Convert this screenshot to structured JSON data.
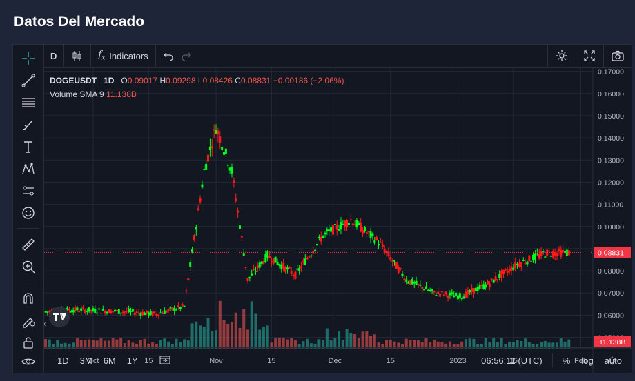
{
  "page": {
    "title": "Datos Del Mercado"
  },
  "toolbar": {
    "interval": "D",
    "indicators_label": "Indicators"
  },
  "legend": {
    "symbol": "DOGEUSDT",
    "interval": "1D",
    "open_label": "O",
    "open": "0.09017",
    "high_label": "H",
    "high": "0.09298",
    "low_label": "L",
    "low": "0.08426",
    "close_label": "C",
    "close": "0.08831",
    "change": "−0.00186 (−2.06%)",
    "volume_label": "Volume SMA 9",
    "volume_value": "11.138B"
  },
  "colors": {
    "up": "#00ff1a",
    "down": "#ff1a1a",
    "volume_up": "#26a69a",
    "volume_down": "#ef5350",
    "last_price": "#f23645"
  },
  "bottom": {
    "ranges": [
      "1D",
      "3M",
      "6M",
      "1Y"
    ],
    "time": "06:56:11 (UTC)",
    "percent": "%",
    "log": "log",
    "auto": "auto"
  },
  "chart_data": {
    "type": "candlestick",
    "symbol": "DOGEUSDT",
    "price_axis": {
      "ticks": [
        "0.17000",
        "0.16000",
        "0.15000",
        "0.14000",
        "0.13000",
        "0.12000",
        "0.11000",
        "0.10000",
        "0.09000",
        "0.08000",
        "0.07000",
        "0.06000",
        "0.05000"
      ],
      "range": [
        0.048,
        0.1705
      ],
      "last_price": "0.08831",
      "volume_label": "11.138B"
    },
    "time_axis": {
      "ticks": [
        "Oct",
        "15",
        "Nov",
        "15",
        "Dec",
        "15",
        "2023",
        "15",
        "Feb"
      ],
      "start": "2022-09-19",
      "end": "2023-02-03"
    },
    "weekly_price_path": [
      {
        "date": "2022-09-19",
        "price": 0.0615
      },
      {
        "date": "2022-09-26",
        "price": 0.0625
      },
      {
        "date": "2022-10-03",
        "price": 0.062
      },
      {
        "date": "2022-10-10",
        "price": 0.0615
      },
      {
        "date": "2022-10-17",
        "price": 0.0605
      },
      {
        "date": "2022-10-24",
        "price": 0.064
      },
      {
        "date": "2022-10-29",
        "price": 0.125
      },
      {
        "date": "2022-11-01",
        "price": 0.145
      },
      {
        "date": "2022-11-05",
        "price": 0.125
      },
      {
        "date": "2022-11-09",
        "price": 0.076
      },
      {
        "date": "2022-11-14",
        "price": 0.087
      },
      {
        "date": "2022-11-21",
        "price": 0.078
      },
      {
        "date": "2022-11-28",
        "price": 0.096
      },
      {
        "date": "2022-12-05",
        "price": 0.103
      },
      {
        "date": "2022-12-12",
        "price": 0.093
      },
      {
        "date": "2022-12-19",
        "price": 0.076
      },
      {
        "date": "2022-12-26",
        "price": 0.07
      },
      {
        "date": "2023-01-02",
        "price": 0.0685
      },
      {
        "date": "2023-01-09",
        "price": 0.0745
      },
      {
        "date": "2023-01-16",
        "price": 0.083
      },
      {
        "date": "2023-01-23",
        "price": 0.088
      },
      {
        "date": "2023-01-29",
        "price": 0.0883
      }
    ]
  }
}
